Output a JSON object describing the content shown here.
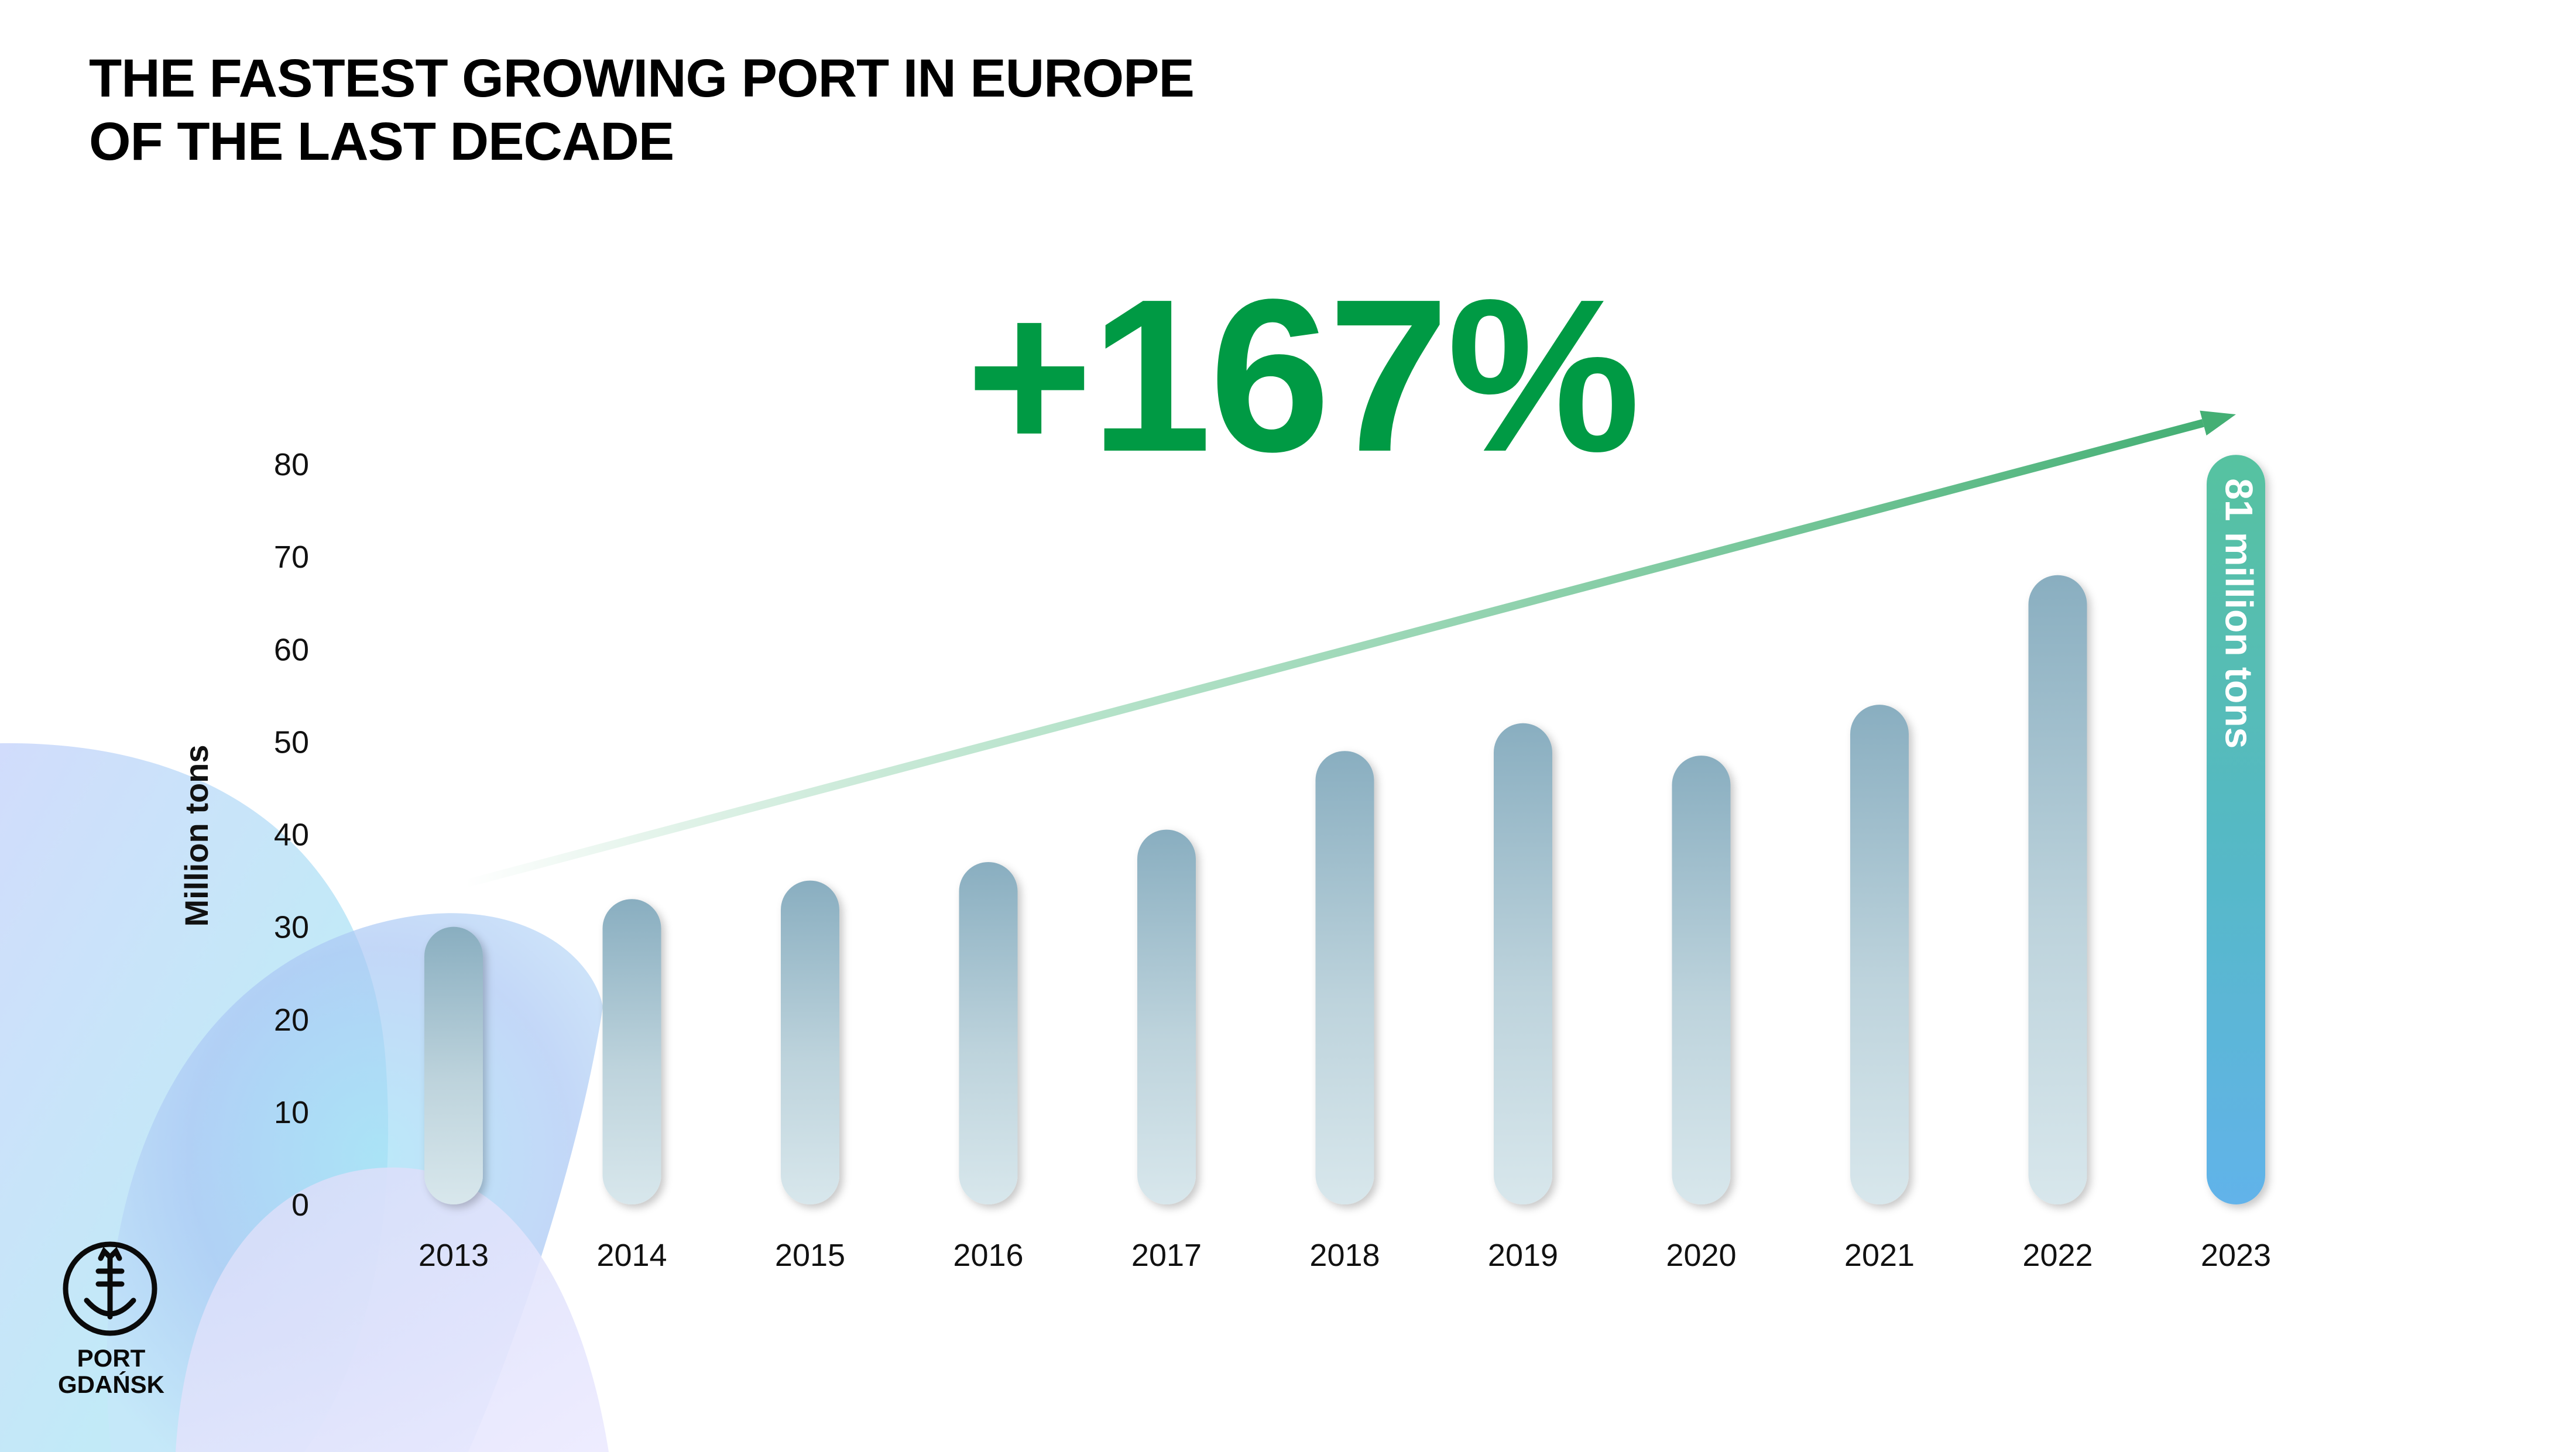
{
  "title": {
    "line1": "THE FASTEST GROWING PORT IN EUROPE",
    "line2": "OF THE LAST DECADE"
  },
  "headline": "+167%",
  "logo": {
    "line1": "PORT",
    "line2": "GDAŃSK"
  },
  "colors": {
    "accent_green": "#009a44",
    "bar_top": "#89aec0",
    "bar_bottom": "#d6e6ec",
    "highlight_top": "#57c2a0",
    "highlight_bottom": "#5fb2e8"
  },
  "chart_data": {
    "type": "bar",
    "ylabel": "Million tons",
    "ylim": [
      0,
      80
    ],
    "yticks": [
      0,
      10,
      20,
      30,
      40,
      50,
      60,
      70,
      80
    ],
    "categories": [
      "2013",
      "2014",
      "2015",
      "2016",
      "2017",
      "2018",
      "2019",
      "2020",
      "2021",
      "2022",
      "2023"
    ],
    "values": [
      30,
      33,
      35,
      37,
      40.5,
      49,
      52,
      48.5,
      54,
      68,
      81
    ],
    "highlight": {
      "category": "2023",
      "label": "81 million tons"
    },
    "trend_arrow": {
      "from": "2013",
      "to": "2023"
    }
  }
}
